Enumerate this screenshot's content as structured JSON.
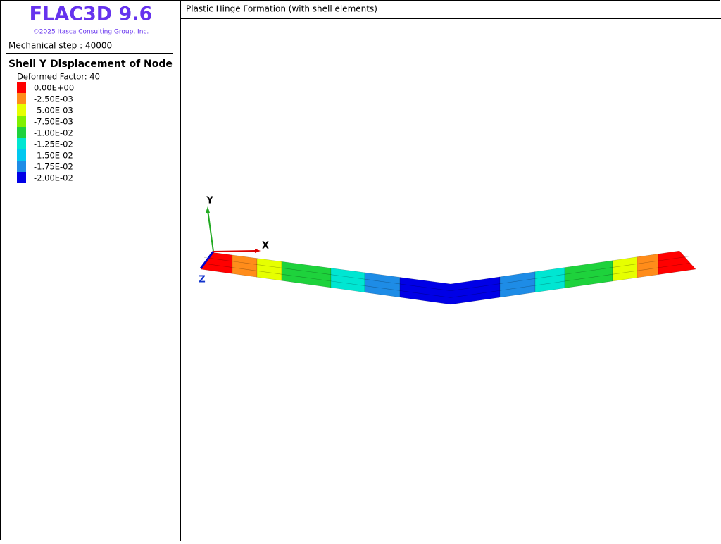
{
  "header": {
    "title": "FLAC3D 9.6",
    "copyright": "©2025 Itasca Consulting Group, Inc.",
    "step": "Mechanical step : 40000"
  },
  "legend": {
    "title": "Shell Y Displacement of Node",
    "factor": "Deformed Factor: 40",
    "entries": [
      {
        "label": "0.00E+00",
        "color": "#ff0000"
      },
      {
        "label": "-2.50E-03",
        "color": "#ff8c1a"
      },
      {
        "label": "-5.00E-03",
        "color": "#e6ff00"
      },
      {
        "label": "-7.50E-03",
        "color": "#80f000"
      },
      {
        "label": "-1.00E-02",
        "color": "#1ed23c"
      },
      {
        "label": "-1.25E-02",
        "color": "#00e6d2"
      },
      {
        "label": "-1.50E-02",
        "color": "#00c8f0"
      },
      {
        "label": "-1.75E-02",
        "color": "#1e8ce6"
      },
      {
        "label": "-2.00E-02",
        "color": "#0000e6"
      }
    ]
  },
  "plot": {
    "title": "Plastic Hinge Formation (with shell elements)",
    "axes": {
      "x": "X",
      "y": "Y",
      "z": "Z"
    }
  }
}
